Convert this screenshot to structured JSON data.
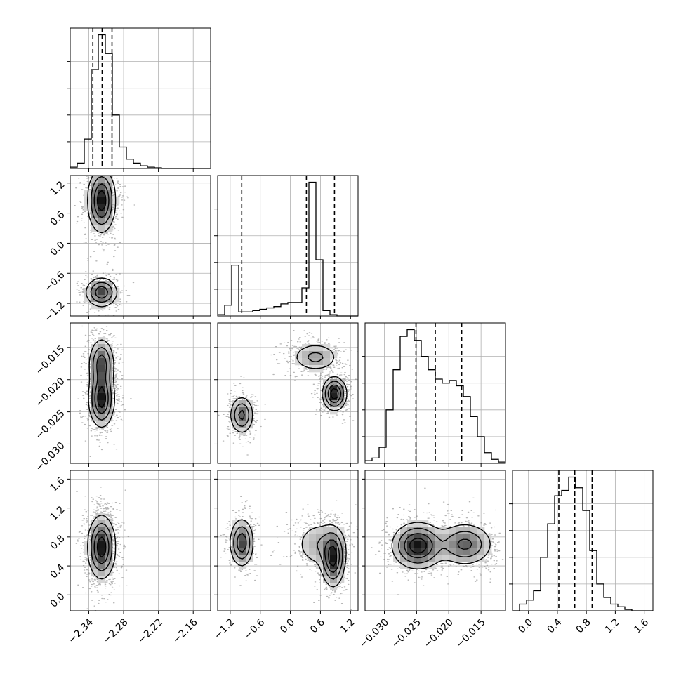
{
  "chart_data": {
    "type": "corner",
    "title": "",
    "parameters": [
      {
        "label": "",
        "range": [
          -2.372,
          -2.13
        ],
        "ticks": [
          -2.34,
          -2.28,
          -2.22,
          -2.16
        ],
        "tick_labels": [
          "−2.34",
          "−2.28",
          "−2.22",
          "−2.16"
        ],
        "quantiles": [
          -2.333,
          -2.317,
          -2.3
        ]
      },
      {
        "label": "",
        "range": [
          -1.45,
          1.35
        ],
        "ticks": [
          -1.2,
          -0.6,
          0.0,
          0.6,
          1.2
        ],
        "tick_labels": [
          "−1.2",
          "−0.6",
          "0.0",
          "0.6",
          "1.2"
        ],
        "quantiles": [
          -0.97,
          0.32,
          0.88
        ]
      },
      {
        "label": "",
        "range": [
          -0.033,
          -0.0112
        ],
        "ticks": [
          -0.03,
          -0.025,
          -0.02,
          -0.015
        ],
        "tick_labels": [
          "−0.030",
          "−0.025",
          "−0.020",
          "−0.015"
        ],
        "quantiles": [
          -0.0251,
          -0.0221,
          -0.018
        ]
      },
      {
        "label": "",
        "range": [
          -0.22,
          1.72
        ],
        "ticks": [
          0.0,
          0.4,
          0.8,
          1.2,
          1.6
        ],
        "tick_labels": [
          "0.0",
          "0.4",
          "0.8",
          "1.2",
          "1.6"
        ],
        "quantiles": [
          0.42,
          0.64,
          0.88
        ]
      }
    ],
    "marginals": [
      {
        "parameter": 0,
        "bin_start": -2.372,
        "bin_width": 0.0121,
        "counts": [
          1,
          4,
          22,
          74,
          100,
          86,
          40,
          16,
          7,
          4,
          2,
          1,
          0.5,
          0,
          0,
          0,
          0,
          0,
          0,
          0
        ]
      },
      {
        "parameter": 1,
        "bin_start": -1.45,
        "bin_width": 0.14,
        "counts": [
          1,
          8,
          38,
          3,
          3,
          4,
          5,
          6,
          7,
          9,
          10,
          10,
          21,
          100,
          42,
          4,
          1,
          0,
          0,
          0
        ]
      },
      {
        "parameter": 2,
        "bin_start": -0.033,
        "bin_width": 0.00109,
        "counts": [
          2,
          4,
          12,
          40,
          70,
          95,
          100,
          92,
          80,
          70,
          63,
          60,
          62,
          58,
          50,
          35,
          20,
          8,
          3,
          1
        ]
      },
      {
        "parameter": 3,
        "bin_start": -0.22,
        "bin_width": 0.097,
        "counts": [
          0,
          5,
          8,
          15,
          40,
          65,
          86,
          90,
          100,
          92,
          75,
          45,
          20,
          10,
          5,
          3,
          1,
          0,
          0,
          0
        ]
      }
    ],
    "joint": [
      {
        "x": 0,
        "y": 1,
        "modes": [
          {
            "center": [
              -2.318,
              0.85
            ],
            "spread": [
              0.012,
              0.32
            ],
            "weight": 0.7
          },
          {
            "center": [
              -2.318,
              -0.98
            ],
            "spread": [
              0.014,
              0.15
            ],
            "weight": 0.3
          }
        ]
      },
      {
        "x": 0,
        "y": 2,
        "modes": [
          {
            "center": [
              -2.318,
              -0.023
            ],
            "spread": [
              0.011,
              0.0022
            ],
            "weight": 0.6
          },
          {
            "center": [
              -2.318,
              -0.0175
            ],
            "spread": [
              0.011,
              0.002
            ],
            "weight": 0.4
          }
        ]
      },
      {
        "x": 1,
        "y": 2,
        "modes": [
          {
            "center": [
              -0.97,
              -0.0255
            ],
            "spread": [
              0.12,
              0.0015
            ],
            "weight": 0.3
          },
          {
            "center": [
              0.5,
              -0.0165
            ],
            "spread": [
              0.25,
              0.0012
            ],
            "weight": 0.3
          },
          {
            "center": [
              0.88,
              -0.0222
            ],
            "spread": [
              0.12,
              0.0013
            ],
            "weight": 0.4
          }
        ]
      },
      {
        "x": 0,
        "y": 3,
        "modes": [
          {
            "center": [
              -2.318,
              0.66
            ],
            "spread": [
              0.012,
              0.22
            ],
            "weight": 1.0
          }
        ]
      },
      {
        "x": 1,
        "y": 3,
        "modes": [
          {
            "center": [
              -0.97,
              0.72
            ],
            "spread": [
              0.12,
              0.17
            ],
            "weight": 0.3
          },
          {
            "center": [
              0.6,
              0.7
            ],
            "spread": [
              0.28,
              0.18
            ],
            "weight": 0.3
          },
          {
            "center": [
              0.85,
              0.5
            ],
            "spread": [
              0.12,
              0.2
            ],
            "weight": 0.4
          }
        ]
      },
      {
        "x": 2,
        "y": 3,
        "modes": [
          {
            "center": [
              -0.0248,
              0.68
            ],
            "spread": [
              0.002,
              0.16
            ],
            "weight": 0.6
          },
          {
            "center": [
              -0.0175,
              0.7
            ],
            "spread": [
              0.0022,
              0.15
            ],
            "weight": 0.4
          }
        ]
      }
    ],
    "grid": true,
    "legend": "none"
  }
}
